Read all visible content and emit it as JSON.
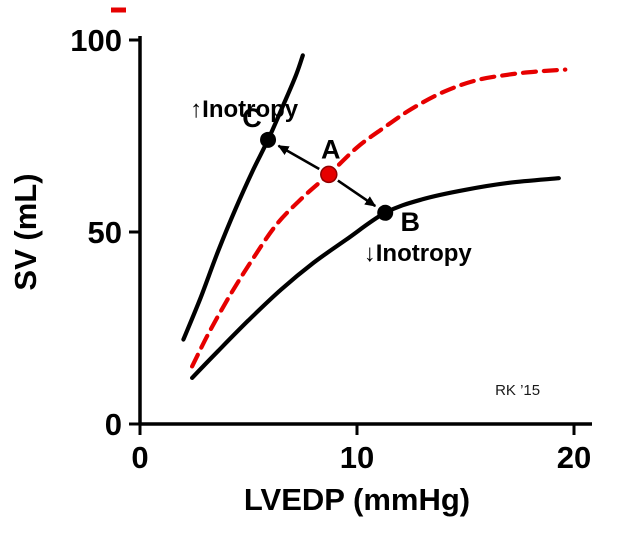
{
  "chart_data": {
    "type": "line",
    "title": "",
    "xlabel": "LVEDP (mmHg)",
    "ylabel": "SV (mL)",
    "xlim": [
      0,
      20
    ],
    "ylim": [
      0,
      100
    ],
    "x_ticks": [
      0,
      10,
      20
    ],
    "y_ticks": [
      0,
      50,
      100
    ],
    "grid": false,
    "legend": "none",
    "colors": {
      "normal_curve": "#e60000",
      "inotropy_curves": "#000000",
      "axis": "#000000"
    },
    "series": [
      {
        "name": "increased-inotropy-curve",
        "color": "#000000",
        "style": "solid",
        "points": [
          [
            2.0,
            22
          ],
          [
            2.8,
            33
          ],
          [
            3.6,
            45
          ],
          [
            4.4,
            56
          ],
          [
            5.2,
            66
          ],
          [
            5.9,
            74
          ],
          [
            6.6,
            83
          ],
          [
            7.2,
            91
          ],
          [
            7.5,
            96
          ]
        ]
      },
      {
        "name": "normal-curve",
        "color": "#e60000",
        "style": "dashed",
        "points": [
          [
            2.4,
            15
          ],
          [
            3.2,
            24
          ],
          [
            4.2,
            34
          ],
          [
            5.2,
            43
          ],
          [
            6.3,
            52
          ],
          [
            7.5,
            59
          ],
          [
            8.7,
            65
          ],
          [
            10,
            72
          ],
          [
            11.2,
            77
          ],
          [
            12.5,
            82
          ],
          [
            14,
            86.5
          ],
          [
            15.5,
            89.5
          ],
          [
            17,
            91
          ],
          [
            18.3,
            91.8
          ],
          [
            19.6,
            92.3
          ]
        ]
      },
      {
        "name": "decreased-inotropy-curve",
        "color": "#000000",
        "style": "solid",
        "points": [
          [
            2.4,
            12
          ],
          [
            3.6,
            19
          ],
          [
            5,
            27
          ],
          [
            6.5,
            35
          ],
          [
            8,
            42
          ],
          [
            9.5,
            48
          ],
          [
            11.3,
            55
          ],
          [
            13,
            58.5
          ],
          [
            15,
            61
          ],
          [
            17,
            62.8
          ],
          [
            19.3,
            64
          ]
        ]
      }
    ],
    "points": [
      {
        "label": "A",
        "x": 8.7,
        "y": 65,
        "color": "#e60000"
      },
      {
        "label": "B",
        "x": 11.3,
        "y": 55,
        "color": "#000000"
      },
      {
        "label": "C",
        "x": 5.9,
        "y": 74,
        "color": "#000000"
      }
    ],
    "arrows": [
      {
        "from": "A",
        "to": "C"
      },
      {
        "from": "A",
        "to": "B"
      }
    ],
    "annotations": [
      {
        "name": "increased-inotropy-label",
        "text": "↑Inotropy",
        "x": 4.8,
        "y": 80,
        "small": false
      },
      {
        "name": "decreased-inotropy-label",
        "text": "↓Inotropy",
        "x": 12.8,
        "y": 42.5,
        "small": false
      },
      {
        "name": "credit",
        "text": "RK ’15",
        "x": 17.4,
        "y": 7.5,
        "small": true
      }
    ]
  }
}
